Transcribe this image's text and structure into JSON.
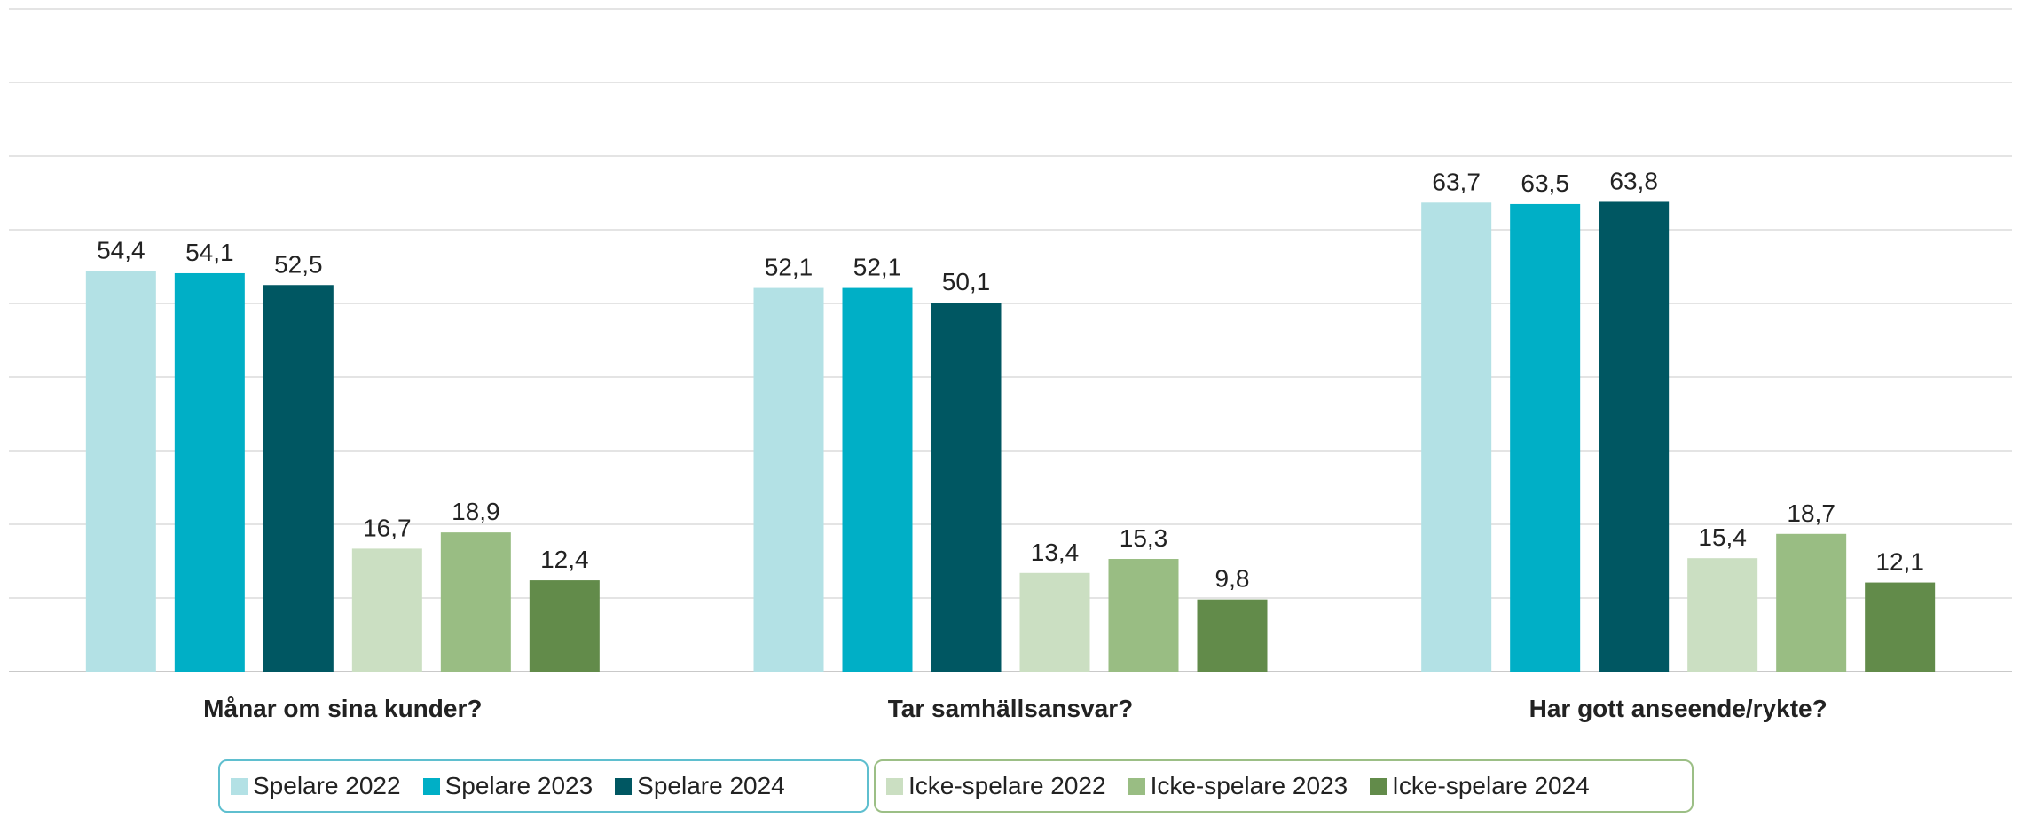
{
  "chart_data": {
    "type": "bar",
    "categories": [
      "Månar om sina kunder?",
      "Tar samhällsansvar?",
      "Har gott anseende/rykte?"
    ],
    "series": [
      {
        "name": "Spelare 2022",
        "color": "#b3e1e5",
        "values": [
          54.4,
          52.1,
          63.7
        ],
        "labels": [
          "54,4",
          "52,1",
          "63,7"
        ]
      },
      {
        "name": "Spelare 2023",
        "color": "#00afc6",
        "values": [
          54.1,
          52.1,
          63.5
        ],
        "labels": [
          "54,1",
          "52,1",
          "63,5"
        ]
      },
      {
        "name": "Spelare 2024",
        "color": "#005762",
        "values": [
          52.5,
          50.1,
          63.8
        ],
        "labels": [
          "52,5",
          "50,1",
          "63,8"
        ]
      },
      {
        "name": "Icke-spelare 2022",
        "color": "#cbdfc2",
        "values": [
          16.7,
          13.4,
          15.4
        ],
        "labels": [
          "16,7",
          "13,4",
          "15,4"
        ]
      },
      {
        "name": "Icke-spelare 2023",
        "color": "#99bd83",
        "values": [
          18.9,
          15.3,
          18.7
        ],
        "labels": [
          "18,9",
          "15,3",
          "18,7"
        ]
      },
      {
        "name": "Icke-spelare 2024",
        "color": "#628b4a",
        "values": [
          12.4,
          9.8,
          12.1
        ],
        "labels": [
          "12,4",
          "9,8",
          "12,1"
        ]
      }
    ],
    "ylim": [
      0,
      90
    ],
    "grid": true,
    "legend_position": "bottom",
    "title": "",
    "xlabel": "",
    "ylabel": ""
  }
}
